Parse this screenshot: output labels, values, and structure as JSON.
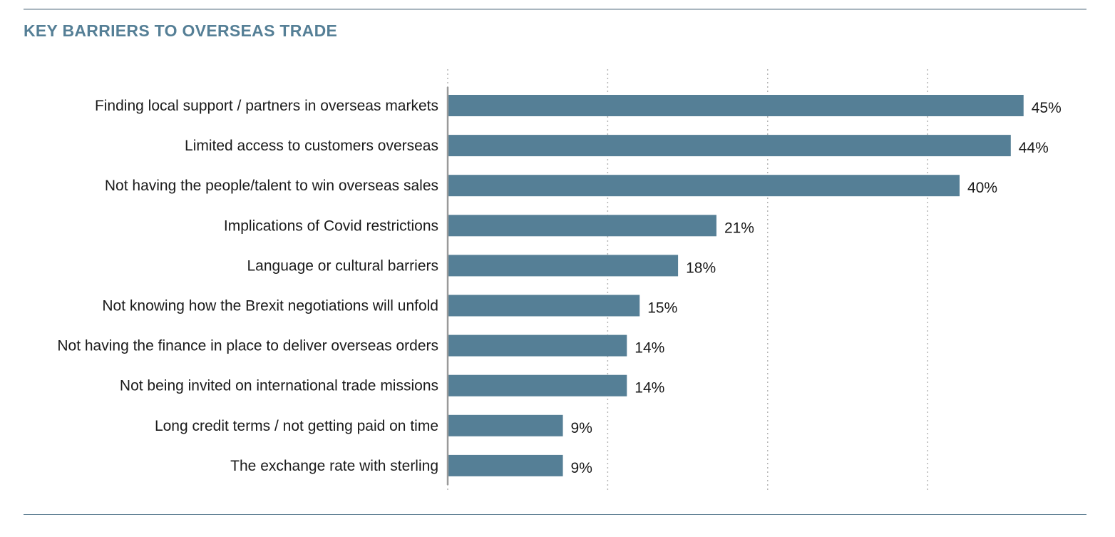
{
  "page": {
    "title": "KEY BARRIERS TO OVERSEAS  TRADE"
  },
  "colors": {
    "bar": "#557f96",
    "title": "#557f96",
    "grid": "#b5b5b5",
    "axis": "#9a9a9a",
    "text": "#1a1a1a"
  },
  "chart_data": {
    "type": "bar",
    "orientation": "horizontal",
    "title": "KEY BARRIERS TO OVERSEAS  TRADE",
    "categories": [
      "Finding local support / partners in overseas markets",
      "Limited access to customers overseas",
      "Not having the people/talent to win overseas sales",
      "Implications of Covid restrictions",
      "Language or cultural barriers",
      "Not knowing how the Brexit negotiations will unfold",
      "Not having the finance in place to deliver overseas orders",
      "Not being invited on international trade missions",
      "Long credit terms / not getting paid on time",
      "The exchange rate with sterling"
    ],
    "values": [
      45,
      44,
      40,
      21,
      18,
      15,
      14,
      14,
      9,
      9
    ],
    "value_labels": [
      "45%",
      "44%",
      "40%",
      "21%",
      "18%",
      "15%",
      "14%",
      "14%",
      "9%",
      "9%"
    ],
    "xlabel": "",
    "ylabel": "",
    "xlim": [
      0,
      50
    ],
    "grid": true,
    "gridline_values": [
      0,
      12.5,
      25,
      37.5
    ],
    "legend": "none"
  }
}
